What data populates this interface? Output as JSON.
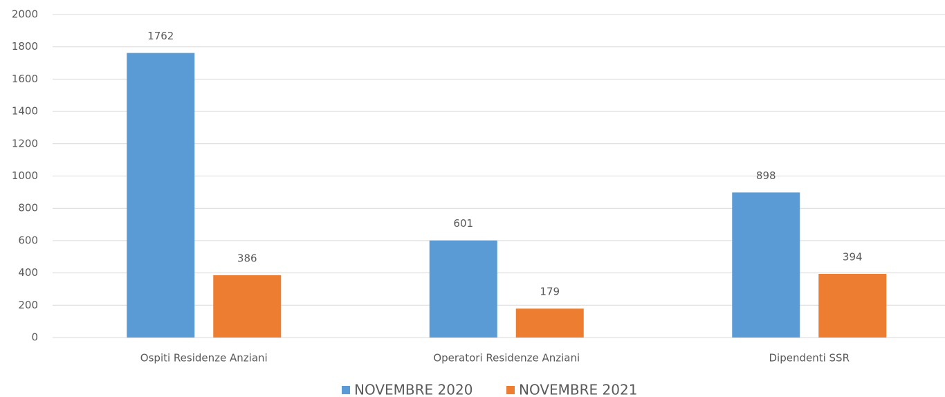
{
  "chart_data": {
    "type": "bar",
    "categories": [
      "Ospiti Residenze Anziani",
      "Operatori Residenze Anziani",
      "Dipendenti SSR"
    ],
    "series": [
      {
        "name": "NOVEMBRE 2020",
        "color": "#5b9bd5",
        "values": [
          1762,
          601,
          898
        ]
      },
      {
        "name": "NOVEMBRE 2021",
        "color": "#ed7d31",
        "values": [
          386,
          179,
          394
        ]
      }
    ],
    "ylim": [
      0,
      2000
    ],
    "yticks": [
      0,
      200,
      400,
      600,
      800,
      1000,
      1200,
      1400,
      1600,
      1800,
      2000
    ],
    "grid": true,
    "legend": "bottom",
    "data_labels": true
  }
}
